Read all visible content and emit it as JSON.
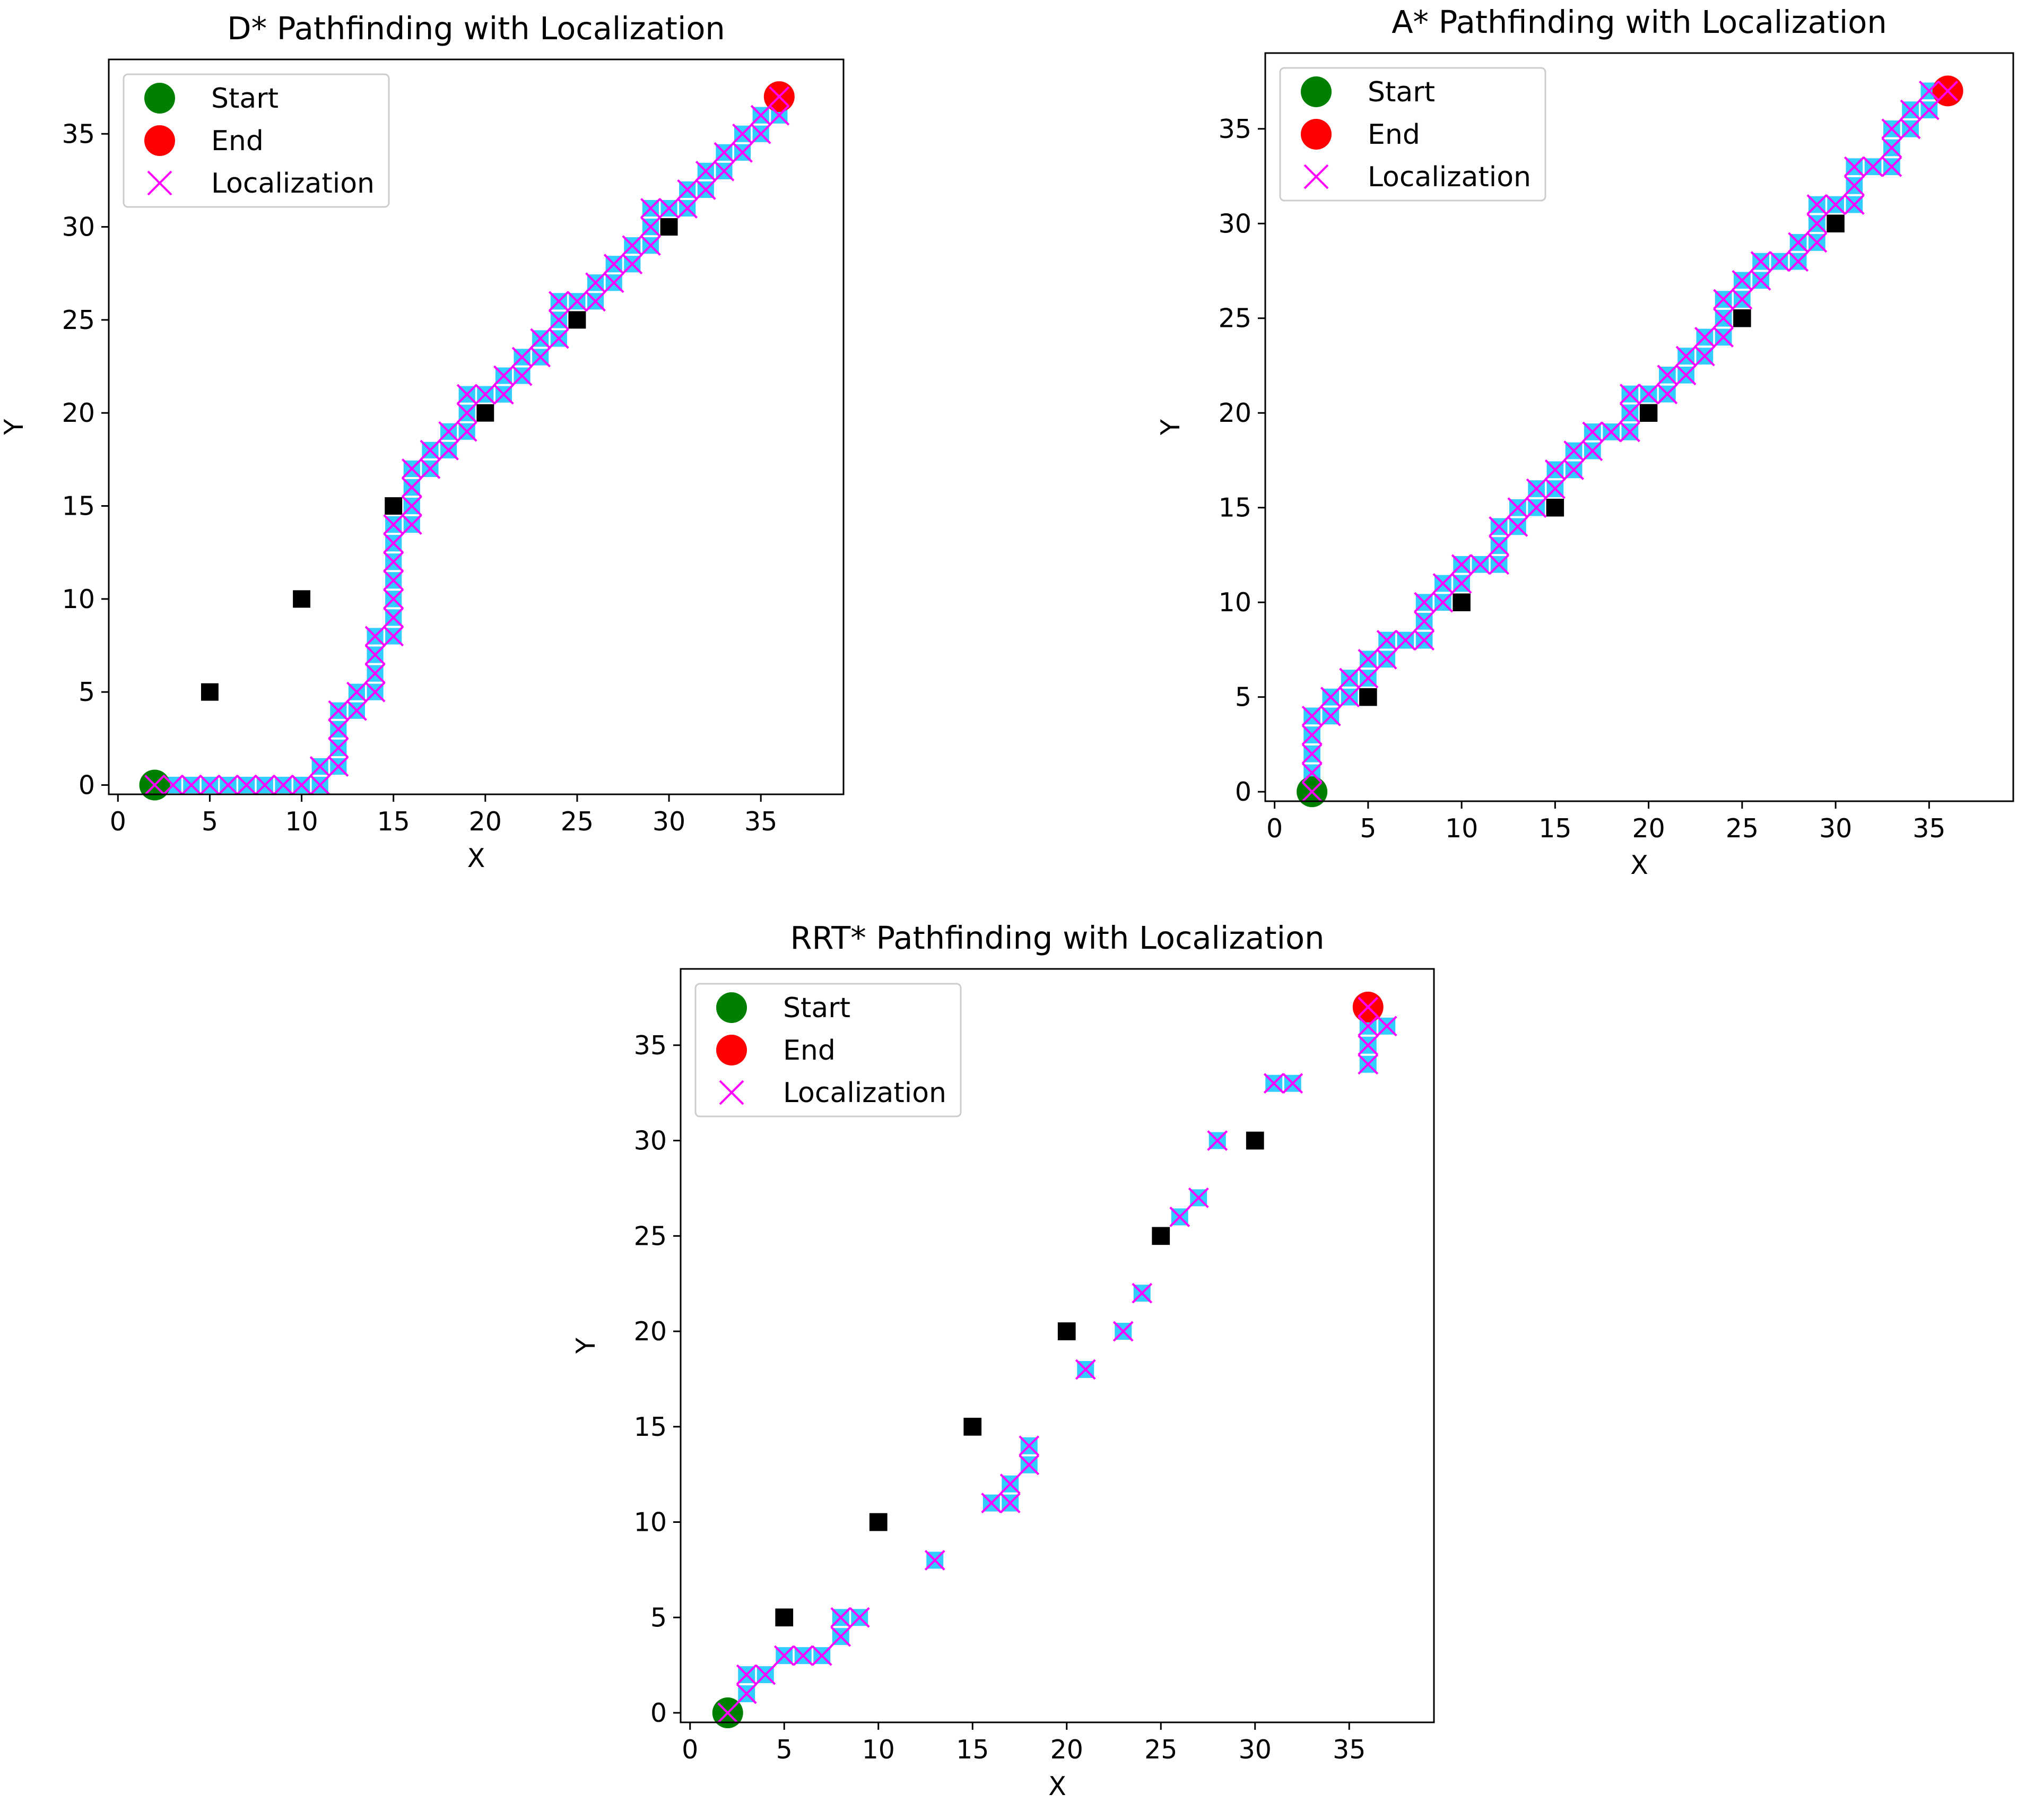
{
  "figure_title": "",
  "colors": {
    "start": "#008000",
    "end": "#ff0000",
    "obstacle": "#000000",
    "path": "#33ccff",
    "localization": "#ff00ff"
  },
  "legend_labels": {
    "start": "Start",
    "end": "End",
    "localization": "Localization"
  },
  "chart_data": [
    {
      "type": "scatter",
      "title": "D* Pathfinding with Localization",
      "xlabel": "X",
      "ylabel": "Y",
      "xlim": [
        -0.5,
        39.5
      ],
      "ylim": [
        -0.5,
        39.0
      ],
      "xticks": [
        0,
        5,
        10,
        15,
        20,
        25,
        30,
        35
      ],
      "yticks": [
        0,
        5,
        10,
        15,
        20,
        25,
        30,
        35
      ],
      "legend_position": "upper-left",
      "start": [
        2,
        0
      ],
      "end": [
        36,
        37
      ],
      "obstacles": [
        [
          5,
          5
        ],
        [
          10,
          10
        ],
        [
          15,
          15
        ],
        [
          20,
          20
        ],
        [
          25,
          25
        ],
        [
          30,
          30
        ]
      ],
      "path": [
        [
          2,
          0
        ],
        [
          3,
          0
        ],
        [
          4,
          0
        ],
        [
          5,
          0
        ],
        [
          6,
          0
        ],
        [
          7,
          0
        ],
        [
          8,
          0
        ],
        [
          9,
          0
        ],
        [
          10,
          0
        ],
        [
          11,
          0
        ],
        [
          11,
          1
        ],
        [
          12,
          1
        ],
        [
          12,
          2
        ],
        [
          12,
          3
        ],
        [
          12,
          4
        ],
        [
          13,
          4
        ],
        [
          13,
          5
        ],
        [
          14,
          5
        ],
        [
          14,
          6
        ],
        [
          14,
          7
        ],
        [
          14,
          8
        ],
        [
          15,
          8
        ],
        [
          15,
          9
        ],
        [
          15,
          10
        ],
        [
          15,
          11
        ],
        [
          15,
          12
        ],
        [
          15,
          13
        ],
        [
          15,
          14
        ],
        [
          16,
          14
        ],
        [
          16,
          15
        ],
        [
          16,
          16
        ],
        [
          16,
          17
        ],
        [
          17,
          17
        ],
        [
          17,
          18
        ],
        [
          18,
          18
        ],
        [
          18,
          19
        ],
        [
          19,
          19
        ],
        [
          19,
          20
        ],
        [
          19,
          21
        ],
        [
          20,
          21
        ],
        [
          21,
          21
        ],
        [
          21,
          22
        ],
        [
          22,
          22
        ],
        [
          22,
          23
        ],
        [
          23,
          23
        ],
        [
          23,
          24
        ],
        [
          24,
          24
        ],
        [
          24,
          25
        ],
        [
          24,
          26
        ],
        [
          25,
          26
        ],
        [
          26,
          26
        ],
        [
          26,
          27
        ],
        [
          27,
          27
        ],
        [
          27,
          28
        ],
        [
          28,
          28
        ],
        [
          28,
          29
        ],
        [
          29,
          29
        ],
        [
          29,
          30
        ],
        [
          29,
          31
        ],
        [
          30,
          31
        ],
        [
          31,
          31
        ],
        [
          31,
          32
        ],
        [
          32,
          32
        ],
        [
          32,
          33
        ],
        [
          33,
          33
        ],
        [
          33,
          34
        ],
        [
          34,
          34
        ],
        [
          34,
          35
        ],
        [
          35,
          35
        ],
        [
          35,
          36
        ],
        [
          36,
          36
        ],
        [
          36,
          37
        ]
      ]
    },
    {
      "type": "scatter",
      "title": "A* Pathfinding with Localization",
      "xlabel": "X",
      "ylabel": "Y",
      "xlim": [
        -0.5,
        39.5
      ],
      "ylim": [
        -0.5,
        39.0
      ],
      "xticks": [
        0,
        5,
        10,
        15,
        20,
        25,
        30,
        35
      ],
      "yticks": [
        0,
        5,
        10,
        15,
        20,
        25,
        30,
        35
      ],
      "legend_position": "upper-left",
      "start": [
        2,
        0
      ],
      "end": [
        36,
        37
      ],
      "obstacles": [
        [
          5,
          5
        ],
        [
          10,
          10
        ],
        [
          15,
          15
        ],
        [
          20,
          20
        ],
        [
          25,
          25
        ],
        [
          30,
          30
        ]
      ],
      "path": [
        [
          2,
          0
        ],
        [
          2,
          1
        ],
        [
          2,
          2
        ],
        [
          2,
          3
        ],
        [
          2,
          4
        ],
        [
          3,
          4
        ],
        [
          3,
          5
        ],
        [
          4,
          5
        ],
        [
          4,
          6
        ],
        [
          5,
          6
        ],
        [
          5,
          7
        ],
        [
          6,
          7
        ],
        [
          6,
          8
        ],
        [
          7,
          8
        ],
        [
          8,
          8
        ],
        [
          8,
          9
        ],
        [
          8,
          10
        ],
        [
          9,
          10
        ],
        [
          9,
          11
        ],
        [
          10,
          11
        ],
        [
          10,
          12
        ],
        [
          11,
          12
        ],
        [
          12,
          12
        ],
        [
          12,
          13
        ],
        [
          12,
          14
        ],
        [
          13,
          14
        ],
        [
          13,
          15
        ],
        [
          14,
          15
        ],
        [
          14,
          16
        ],
        [
          15,
          16
        ],
        [
          15,
          17
        ],
        [
          16,
          17
        ],
        [
          16,
          18
        ],
        [
          17,
          18
        ],
        [
          17,
          19
        ],
        [
          18,
          19
        ],
        [
          19,
          19
        ],
        [
          19,
          20
        ],
        [
          19,
          21
        ],
        [
          20,
          21
        ],
        [
          21,
          21
        ],
        [
          21,
          22
        ],
        [
          22,
          22
        ],
        [
          22,
          23
        ],
        [
          23,
          23
        ],
        [
          23,
          24
        ],
        [
          24,
          24
        ],
        [
          24,
          25
        ],
        [
          24,
          26
        ],
        [
          25,
          26
        ],
        [
          25,
          27
        ],
        [
          26,
          27
        ],
        [
          26,
          28
        ],
        [
          27,
          28
        ],
        [
          28,
          28
        ],
        [
          28,
          29
        ],
        [
          29,
          29
        ],
        [
          29,
          30
        ],
        [
          29,
          31
        ],
        [
          30,
          31
        ],
        [
          31,
          31
        ],
        [
          31,
          32
        ],
        [
          31,
          33
        ],
        [
          32,
          33
        ],
        [
          33,
          33
        ],
        [
          33,
          34
        ],
        [
          33,
          35
        ],
        [
          34,
          35
        ],
        [
          34,
          36
        ],
        [
          35,
          36
        ],
        [
          35,
          37
        ],
        [
          36,
          37
        ]
      ]
    },
    {
      "type": "scatter",
      "title": "RRT* Pathfinding with Localization",
      "xlabel": "X",
      "ylabel": "Y",
      "xlim": [
        -0.5,
        39.5
      ],
      "ylim": [
        -0.5,
        39.0
      ],
      "xticks": [
        0,
        5,
        10,
        15,
        20,
        25,
        30,
        35
      ],
      "yticks": [
        0,
        5,
        10,
        15,
        20,
        25,
        30,
        35
      ],
      "legend_position": "upper-left",
      "start": [
        2,
        0
      ],
      "end": [
        36,
        37
      ],
      "obstacles": [
        [
          5,
          5
        ],
        [
          10,
          10
        ],
        [
          15,
          15
        ],
        [
          20,
          20
        ],
        [
          25,
          25
        ],
        [
          30,
          30
        ]
      ],
      "path": [
        [
          2,
          0
        ],
        [
          3,
          1
        ],
        [
          3,
          2
        ],
        [
          4,
          2
        ],
        [
          5,
          3
        ],
        [
          6,
          3
        ],
        [
          7,
          3
        ],
        [
          8,
          4
        ],
        [
          8,
          5
        ],
        [
          9,
          5
        ],
        [
          13,
          8
        ],
        [
          16,
          11
        ],
        [
          17,
          11
        ],
        [
          17,
          12
        ],
        [
          18,
          13
        ],
        [
          18,
          14
        ],
        [
          21,
          18
        ],
        [
          23,
          20
        ],
        [
          24,
          22
        ],
        [
          26,
          26
        ],
        [
          27,
          27
        ],
        [
          28,
          30
        ],
        [
          31,
          33
        ],
        [
          32,
          33
        ],
        [
          36,
          34
        ],
        [
          36,
          35
        ],
        [
          36,
          36
        ],
        [
          37,
          36
        ],
        [
          36,
          37
        ]
      ]
    }
  ]
}
